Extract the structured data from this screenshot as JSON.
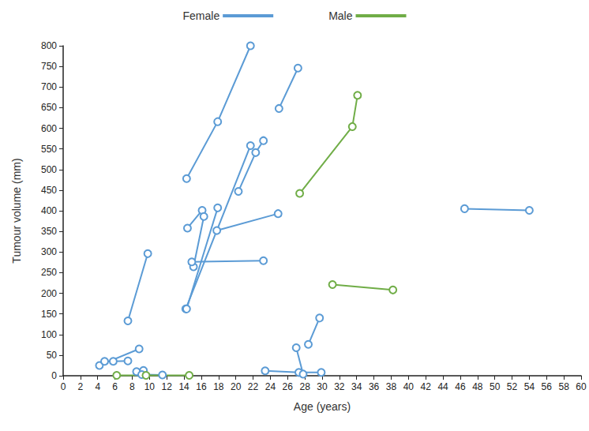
{
  "chart_data": {
    "type": "line",
    "x_label": "Age (years)",
    "y_label": "Tumour volume (mm)",
    "xlim": [
      0,
      60
    ],
    "xticks": [
      0,
      2,
      4,
      6,
      8,
      10,
      12,
      14,
      16,
      18,
      20,
      22,
      24,
      26,
      28,
      30,
      32,
      34,
      36,
      38,
      40,
      42,
      44,
      46,
      48,
      50,
      52,
      54,
      56,
      58,
      60
    ],
    "ylim": [
      0,
      800
    ],
    "yticks": [
      0,
      50,
      100,
      150,
      200,
      250,
      300,
      350,
      400,
      450,
      500,
      550,
      600,
      650,
      700,
      750,
      800
    ],
    "grid": false,
    "legend": "top",
    "marker": "open_circle",
    "series": [
      {
        "name": "Female",
        "color": "#5b9bd5",
        "x": [
          14.3,
          17.9,
          21.7
        ],
        "values": [
          478,
          616,
          800
        ]
      },
      {
        "name": "Female",
        "color": "#5b9bd5",
        "x": [
          25.0,
          27.2
        ],
        "values": [
          648,
          746
        ]
      },
      {
        "name": "Female",
        "color": "#5b9bd5",
        "x": [
          20.3,
          22.3,
          23.2
        ],
        "values": [
          447,
          541,
          570
        ]
      },
      {
        "name": "Female",
        "color": "#5b9bd5",
        "x": [
          14.2,
          21.7
        ],
        "values": [
          162,
          558
        ]
      },
      {
        "name": "Female",
        "color": "#5b9bd5",
        "x": [
          14.4,
          16.1
        ],
        "values": [
          358,
          401
        ]
      },
      {
        "name": "Female",
        "color": "#5b9bd5",
        "x": [
          15.1,
          16.3
        ],
        "values": [
          264,
          386
        ]
      },
      {
        "name": "Female",
        "color": "#5b9bd5",
        "x": [
          14.3,
          17.9
        ],
        "values": [
          162,
          407
        ]
      },
      {
        "name": "Female",
        "color": "#5b9bd5",
        "x": [
          17.8,
          24.9
        ],
        "values": [
          352,
          393
        ]
      },
      {
        "name": "Female",
        "color": "#5b9bd5",
        "x": [
          14.9,
          23.2
        ],
        "values": [
          276,
          279
        ]
      },
      {
        "name": "Female",
        "color": "#5b9bd5",
        "x": [
          7.5,
          9.8
        ],
        "values": [
          133,
          296
        ]
      },
      {
        "name": "Female",
        "color": "#5b9bd5",
        "x": [
          4.2,
          8.8
        ],
        "values": [
          25,
          65
        ]
      },
      {
        "name": "Female",
        "color": "#5b9bd5",
        "x": [
          4.8,
          5.8,
          7.5
        ],
        "values": [
          35,
          35,
          36
        ]
      },
      {
        "name": "Female",
        "color": "#5b9bd5",
        "x": [
          8.5,
          9.3
        ],
        "values": [
          10,
          13
        ]
      },
      {
        "name": "Female",
        "color": "#5b9bd5",
        "x": [
          9.1,
          11.5
        ],
        "values": [
          3,
          2
        ]
      },
      {
        "name": "Female",
        "color": "#5b9bd5",
        "x": [
          23.4,
          27.3,
          29.9
        ],
        "values": [
          12,
          8,
          8
        ]
      },
      {
        "name": "Female",
        "color": "#5b9bd5",
        "x": [
          27.0,
          27.8
        ],
        "values": [
          68,
          4
        ]
      },
      {
        "name": "Female",
        "color": "#5b9bd5",
        "x": [
          28.4,
          29.7
        ],
        "values": [
          76,
          140
        ]
      },
      {
        "name": "Female",
        "color": "#5b9bd5",
        "x": [
          46.5,
          54.0
        ],
        "values": [
          405,
          401
        ]
      },
      {
        "name": "Male",
        "color": "#70ad47",
        "x": [
          27.4,
          33.5,
          34.1
        ],
        "values": [
          442,
          604,
          680
        ]
      },
      {
        "name": "Male",
        "color": "#70ad47",
        "x": [
          31.2,
          38.2
        ],
        "values": [
          221,
          208
        ]
      },
      {
        "name": "Male",
        "color": "#70ad47",
        "x": [
          6.2,
          9.6,
          14.6
        ],
        "values": [
          1,
          1,
          1
        ]
      }
    ]
  }
}
